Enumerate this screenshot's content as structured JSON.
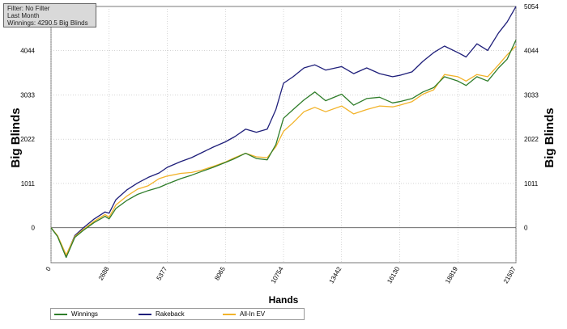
{
  "info": {
    "filter": "Filter: No Filter",
    "period": "Last Month",
    "winnings": "Winnings: 4290.5 Big Blinds"
  },
  "colors": {
    "winnings": "#2f7d2a",
    "rakeback": "#1f1f7a",
    "allin_ev": "#f2b32a",
    "zero_line": "#555555",
    "grid": "#bbbbbb"
  },
  "chart_data": {
    "type": "line",
    "xlabel": "Hands",
    "ylabel": "Big Blinds",
    "ylabel_right": "Big Blinds",
    "xlim": [
      0,
      21507
    ],
    "ylim": [
      -800,
      5054
    ],
    "x_ticks": [
      0,
      2688,
      5377,
      8065,
      10754,
      13442,
      16130,
      18819,
      21507
    ],
    "y_ticks": [
      0,
      1011,
      2022,
      3033,
      4044
    ],
    "y_ticks_right": [
      0,
      1011,
      2022,
      3033,
      4044,
      5054
    ],
    "grid": true,
    "legend_position": "bottom-left",
    "series": [
      {
        "name": "Winnings",
        "x": [
          0,
          300,
          700,
          1100,
          1500,
          2000,
          2500,
          2688,
          3000,
          3500,
          4000,
          4500,
          5000,
          5377,
          6000,
          6500,
          7000,
          7500,
          8065,
          8500,
          9000,
          9500,
          10000,
          10400,
          10754,
          11200,
          11700,
          12200,
          12700,
          13442,
          14000,
          14600,
          15200,
          15800,
          16130,
          16700,
          17200,
          17700,
          18200,
          18819,
          19200,
          19700,
          20200,
          20700,
          21100,
          21507
        ],
        "y": [
          0,
          -200,
          -680,
          -220,
          -60,
          120,
          260,
          200,
          440,
          620,
          760,
          850,
          920,
          1000,
          1120,
          1200,
          1290,
          1380,
          1490,
          1580,
          1700,
          1580,
          1550,
          1900,
          2500,
          2700,
          2920,
          3100,
          2900,
          3050,
          2800,
          2950,
          2980,
          2850,
          2880,
          2950,
          3100,
          3200,
          3450,
          3350,
          3250,
          3450,
          3350,
          3650,
          3850,
          4290
        ]
      },
      {
        "name": "Rakeback",
        "x": [
          0,
          300,
          700,
          1100,
          1500,
          2000,
          2500,
          2688,
          3000,
          3500,
          4000,
          4500,
          5000,
          5377,
          6000,
          6500,
          7000,
          7500,
          8065,
          8500,
          9000,
          9500,
          10000,
          10400,
          10754,
          11200,
          11700,
          12200,
          12700,
          13442,
          14000,
          14600,
          15200,
          15800,
          16130,
          16700,
          17200,
          17700,
          18200,
          18819,
          19200,
          19700,
          20200,
          20700,
          21100,
          21507
        ],
        "y": [
          0,
          -190,
          -640,
          -180,
          0,
          200,
          360,
          330,
          640,
          860,
          1020,
          1150,
          1250,
          1380,
          1510,
          1600,
          1720,
          1840,
          1960,
          2080,
          2250,
          2180,
          2250,
          2700,
          3300,
          3450,
          3650,
          3720,
          3600,
          3680,
          3520,
          3650,
          3520,
          3450,
          3480,
          3560,
          3800,
          4000,
          4150,
          4000,
          3900,
          4200,
          4050,
          4450,
          4700,
          5054
        ]
      },
      {
        "name": "All-In EV",
        "x": [
          0,
          300,
          700,
          1100,
          1500,
          2000,
          2500,
          2688,
          3000,
          3500,
          4000,
          4500,
          5000,
          5377,
          6000,
          6500,
          7000,
          7500,
          8065,
          8500,
          9000,
          9500,
          10000,
          10400,
          10754,
          11200,
          11700,
          12200,
          12700,
          13442,
          14000,
          14600,
          15200,
          15800,
          16130,
          16700,
          17200,
          17700,
          18200,
          18819,
          19200,
          19700,
          20200,
          20700,
          21100,
          21507
        ],
        "y": [
          0,
          -180,
          -620,
          -200,
          -40,
          150,
          300,
          240,
          520,
          720,
          880,
          960,
          1120,
          1180,
          1240,
          1260,
          1320,
          1400,
          1500,
          1600,
          1700,
          1620,
          1600,
          1850,
          2200,
          2400,
          2650,
          2750,
          2650,
          2780,
          2600,
          2700,
          2780,
          2760,
          2800,
          2880,
          3050,
          3150,
          3500,
          3450,
          3350,
          3500,
          3450,
          3720,
          3950,
          4150
        ]
      }
    ]
  }
}
